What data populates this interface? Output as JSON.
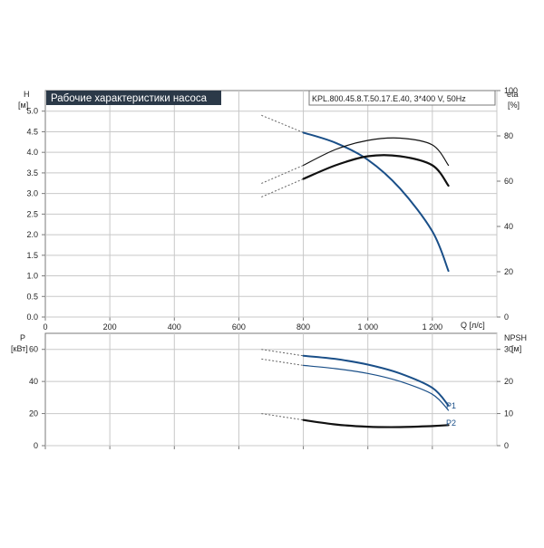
{
  "colors": {
    "curve_blue": "#1a4f88",
    "curve_black": "#111111",
    "grid": "#c8c8c8",
    "frame": "#7a7a7a",
    "title_bg": "#2b3948",
    "title_fg": "#ffffff",
    "dashed": "#666666"
  },
  "chart_data": [
    {
      "type": "line",
      "title": "Рабочие характеристики насоса",
      "model_label": "KPL.800.45.8.T.50.17.E.40, 3*400 V, 50Hz",
      "y_left": {
        "label": "H",
        "unit": "[м]",
        "range": [
          0,
          5.5
        ],
        "ticks": [
          "0.0",
          "0.5",
          "1.0",
          "1.5",
          "2.0",
          "2.5",
          "3.0",
          "3.5",
          "4.0",
          "4.5",
          "5.0"
        ]
      },
      "y_right": {
        "label": "eta",
        "unit": "[%]",
        "range": [
          0,
          100
        ],
        "ticks": [
          "0",
          "20",
          "40",
          "60",
          "80",
          "100"
        ]
      },
      "x": {
        "label": "Q [л/с]",
        "range": [
          0,
          1400
        ],
        "ticks": [
          "0",
          "200",
          "400",
          "600",
          "800",
          "1 000",
          "1 200"
        ]
      },
      "grid": true,
      "series": [
        {
          "axis": "left",
          "style": "blue",
          "extrapolated": [
            [
              670,
              4.9
            ],
            [
              800,
              4.48
            ]
          ],
          "points": [
            [
              800,
              4.48
            ],
            [
              900,
              4.23
            ],
            [
              1000,
              3.82
            ],
            [
              1100,
              3.12
            ],
            [
              1200,
              2.08
            ],
            [
              1250,
              1.12
            ]
          ]
        },
        {
          "axis": "right",
          "style": "black-thin",
          "extrapolated": [
            [
              670,
              59
            ],
            [
              800,
              67
            ]
          ],
          "points": [
            [
              800,
              67
            ],
            [
              900,
              74
            ],
            [
              1000,
              78
            ],
            [
              1100,
              79
            ],
            [
              1200,
              76
            ],
            [
              1250,
              67
            ]
          ]
        },
        {
          "axis": "right",
          "style": "black-bold",
          "extrapolated": [
            [
              670,
              53
            ],
            [
              800,
              61
            ]
          ],
          "points": [
            [
              800,
              61
            ],
            [
              900,
              67
            ],
            [
              1000,
              71
            ],
            [
              1100,
              71
            ],
            [
              1200,
              67
            ],
            [
              1250,
              58
            ]
          ]
        }
      ]
    },
    {
      "type": "line",
      "y_left": {
        "label": "P",
        "unit": "[кВт]",
        "range": [
          0,
          70
        ],
        "ticks": [
          "0",
          "20",
          "40",
          "60"
        ]
      },
      "y_right": {
        "label": "NPSH",
        "unit": "[м]",
        "range": [
          0,
          35
        ],
        "ticks": [
          "0",
          "10",
          "20",
          "30"
        ]
      },
      "x": {
        "range": [
          0,
          1400
        ]
      },
      "grid": true,
      "series": [
        {
          "name": "P1",
          "axis": "left",
          "style": "blue-bold",
          "extrapolated": [
            [
              670,
              60
            ],
            [
              800,
              56
            ]
          ],
          "points": [
            [
              800,
              56
            ],
            [
              900,
              54
            ],
            [
              1000,
              50.5
            ],
            [
              1100,
              45
            ],
            [
              1200,
              36
            ],
            [
              1250,
              25
            ]
          ]
        },
        {
          "name": "P2",
          "axis": "left",
          "style": "blue-thin",
          "extrapolated": [
            [
              670,
              54
            ],
            [
              800,
              50
            ]
          ],
          "points": [
            [
              800,
              50
            ],
            [
              900,
              48
            ],
            [
              1000,
              45
            ],
            [
              1100,
              40
            ],
            [
              1200,
              32
            ],
            [
              1250,
              22
            ]
          ]
        },
        {
          "axis": "right",
          "style": "black-bold",
          "extrapolated": [
            [
              670,
              10
            ],
            [
              800,
              8
            ]
          ],
          "points": [
            [
              800,
              8
            ],
            [
              900,
              6.6
            ],
            [
              1000,
              5.9
            ],
            [
              1100,
              5.8
            ],
            [
              1200,
              6.1
            ],
            [
              1250,
              6.4
            ]
          ]
        }
      ]
    }
  ]
}
